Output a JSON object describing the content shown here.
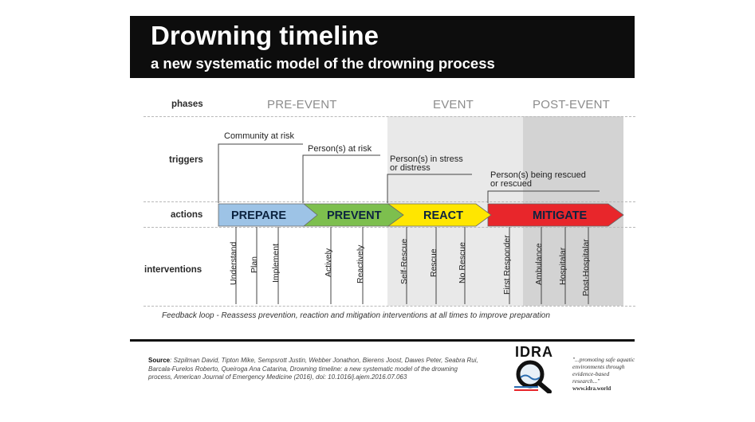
{
  "header": {
    "title": "Drowning timeline",
    "subtitle": "a new systematic model of the drowning process"
  },
  "rows": {
    "phases": "phases",
    "triggers": "triggers",
    "actions": "actions",
    "interventions": "interventions"
  },
  "phases": [
    "PRE-EVENT",
    "EVENT",
    "POST-EVENT"
  ],
  "triggers": [
    "Community at risk",
    "Person(s) at risk",
    "Person(s) in stress",
    "or distress",
    "Person(s) being rescued",
    "or rescued"
  ],
  "actions": [
    "PREPARE",
    "PREVENT",
    "REACT",
    "MITIGATE"
  ],
  "interventions": [
    "Understand",
    "Plan",
    "Implement",
    "Actively",
    "Reactively",
    "Self-Rescue",
    "Rescue",
    "No Rescue",
    "First Responder",
    "Ambulance",
    "Hospitalar",
    "Post-Hospitalar"
  ],
  "feedback": "Feedback loop - Reassess prevention, reaction and mitigation interventions at all times to improve preparation",
  "source": {
    "label": "Source",
    "text": ": Szpilman David, Tipton Mike, Sempsrott Justin, Webber Jonathon, Bierens Joost, Dawes Peter, Seabra Rui, Barcala-Furelos Roberto, Queiroga Ana Catarina, Drowning timeline: a new systematic model of the drowning process, American Journal of Emergency Medicine (2016), doi: 10.1016/j.ajem.2016.07.063"
  },
  "logo": {
    "name": "IDRA",
    "quote": "\"...promoting safe aquatic environments through evidence-based research...\"",
    "website": "www.idra.world"
  },
  "colors": {
    "prepare": "#9dc3e6",
    "prevent": "#7dbf4e",
    "react": "#ffe600",
    "mitigate": "#e8262b",
    "event_shade": "#e9e9e9",
    "post_event_shade": "#d3d3d3"
  }
}
